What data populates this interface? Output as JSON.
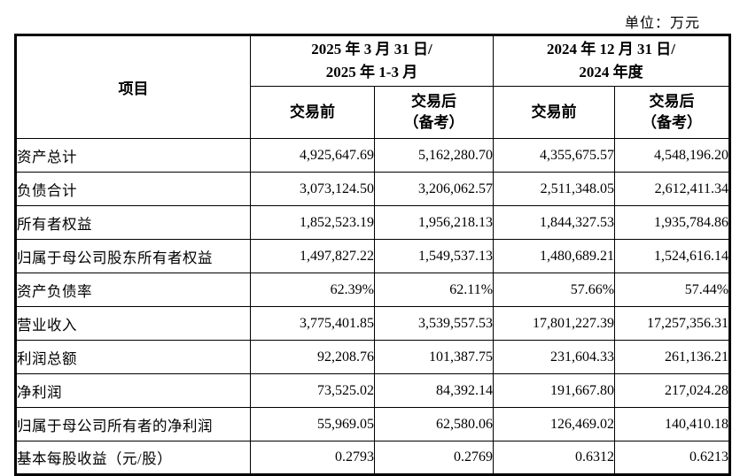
{
  "page": {
    "unit_label": "单位：万元"
  },
  "table": {
    "item_header": "项目",
    "column_groups": [
      {
        "period_line1": "2025 年 3 月 31 日/",
        "period_line2": "2025 年 1-3 月"
      },
      {
        "period_line1": "2024 年 12 月 31 日/",
        "period_line2": "2024 年度"
      }
    ],
    "subheaders": {
      "pre_deal": "交易前",
      "post_deal_line1": "交易后",
      "post_deal_line2": "（备考）"
    },
    "rows": [
      {
        "label": "资产总计",
        "values": [
          "4,925,647.69",
          "5,162,280.70",
          "4,355,675.57",
          "4,548,196.20"
        ]
      },
      {
        "label": "负债合计",
        "values": [
          "3,073,124.50",
          "3,206,062.57",
          "2,511,348.05",
          "2,612,411.34"
        ]
      },
      {
        "label": "所有者权益",
        "values": [
          "1,852,523.19",
          "1,956,218.13",
          "1,844,327.53",
          "1,935,784.86"
        ]
      },
      {
        "label": "归属于母公司股东所有者权益",
        "values": [
          "1,497,827.22",
          "1,549,537.13",
          "1,480,689.21",
          "1,524,616.14"
        ]
      },
      {
        "label": "资产负债率",
        "values": [
          "62.39%",
          "62.11%",
          "57.66%",
          "57.44%"
        ]
      },
      {
        "label": "营业收入",
        "values": [
          "3,775,401.85",
          "3,539,557.53",
          "17,801,227.39",
          "17,257,356.31"
        ]
      },
      {
        "label": "利润总额",
        "values": [
          "92,208.76",
          "101,387.75",
          "231,604.33",
          "261,136.21"
        ]
      },
      {
        "label": "净利润",
        "values": [
          "73,525.02",
          "84,392.14",
          "191,667.80",
          "217,024.28"
        ]
      },
      {
        "label": "归属于母公司所有者的净利润",
        "values": [
          "55,969.05",
          "62,580.06",
          "126,469.02",
          "140,410.18"
        ]
      },
      {
        "label": "基本每股收益（元/股）",
        "values": [
          "0.2793",
          "0.2769",
          "0.6312",
          "0.6213"
        ]
      }
    ]
  }
}
